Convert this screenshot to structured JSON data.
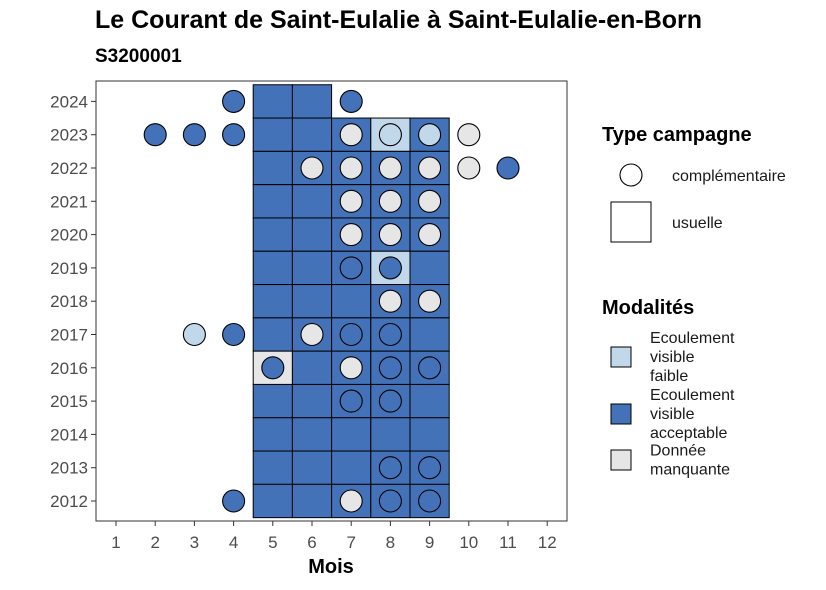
{
  "chart_data": {
    "type": "heatmap",
    "title": "Le Courant de Saint-Eulalie à Saint-Eulalie-en-Born",
    "subtitle": "S3200001",
    "xlabel": "Mois",
    "ylabel": "",
    "x_ticks": [
      "1",
      "2",
      "3",
      "4",
      "5",
      "6",
      "7",
      "8",
      "9",
      "10",
      "11",
      "12"
    ],
    "y_ticks": [
      "2012",
      "2013",
      "2014",
      "2015",
      "2016",
      "2017",
      "2018",
      "2019",
      "2020",
      "2021",
      "2022",
      "2023",
      "2024"
    ],
    "xlim": [
      0.5,
      12.5
    ],
    "ylim": [
      2011.4,
      2024.6
    ],
    "grid": false,
    "colors": {
      "faible": "#c0d8ea",
      "acceptable": "#4472b8",
      "manquante": "#e6e6e6"
    },
    "legend_shapes": {
      "title": "Type campagne",
      "items": [
        {
          "shape": "circle",
          "label": "complémentaire"
        },
        {
          "shape": "square",
          "label": "usuelle"
        }
      ]
    },
    "legend_modalites": {
      "title": "Modalités",
      "items": [
        {
          "key": "faible",
          "label_lines": [
            "Ecoulement",
            "visible",
            "faible"
          ]
        },
        {
          "key": "acceptable",
          "label_lines": [
            "Ecoulement",
            "visible",
            "acceptable"
          ]
        },
        {
          "key": "manquante",
          "label_lines": [
            "Donnée",
            "manquante"
          ]
        }
      ]
    },
    "usuelle": [
      {
        "year": 2024,
        "month": 5,
        "modalite": "acceptable"
      },
      {
        "year": 2024,
        "month": 6,
        "modalite": "acceptable"
      },
      {
        "year": 2023,
        "month": 5,
        "modalite": "acceptable"
      },
      {
        "year": 2023,
        "month": 6,
        "modalite": "acceptable"
      },
      {
        "year": 2023,
        "month": 7,
        "modalite": "acceptable"
      },
      {
        "year": 2023,
        "month": 8,
        "modalite": "faible"
      },
      {
        "year": 2023,
        "month": 9,
        "modalite": "acceptable"
      },
      {
        "year": 2022,
        "month": 5,
        "modalite": "acceptable"
      },
      {
        "year": 2022,
        "month": 6,
        "modalite": "acceptable"
      },
      {
        "year": 2022,
        "month": 7,
        "modalite": "acceptable"
      },
      {
        "year": 2022,
        "month": 8,
        "modalite": "acceptable"
      },
      {
        "year": 2022,
        "month": 9,
        "modalite": "acceptable"
      },
      {
        "year": 2021,
        "month": 5,
        "modalite": "acceptable"
      },
      {
        "year": 2021,
        "month": 6,
        "modalite": "acceptable"
      },
      {
        "year": 2021,
        "month": 7,
        "modalite": "acceptable"
      },
      {
        "year": 2021,
        "month": 8,
        "modalite": "acceptable"
      },
      {
        "year": 2021,
        "month": 9,
        "modalite": "acceptable"
      },
      {
        "year": 2020,
        "month": 5,
        "modalite": "acceptable"
      },
      {
        "year": 2020,
        "month": 6,
        "modalite": "acceptable"
      },
      {
        "year": 2020,
        "month": 7,
        "modalite": "acceptable"
      },
      {
        "year": 2020,
        "month": 8,
        "modalite": "acceptable"
      },
      {
        "year": 2020,
        "month": 9,
        "modalite": "acceptable"
      },
      {
        "year": 2019,
        "month": 5,
        "modalite": "acceptable"
      },
      {
        "year": 2019,
        "month": 6,
        "modalite": "acceptable"
      },
      {
        "year": 2019,
        "month": 7,
        "modalite": "acceptable"
      },
      {
        "year": 2019,
        "month": 8,
        "modalite": "faible"
      },
      {
        "year": 2019,
        "month": 9,
        "modalite": "acceptable"
      },
      {
        "year": 2018,
        "month": 5,
        "modalite": "acceptable"
      },
      {
        "year": 2018,
        "month": 6,
        "modalite": "acceptable"
      },
      {
        "year": 2018,
        "month": 7,
        "modalite": "acceptable"
      },
      {
        "year": 2018,
        "month": 8,
        "modalite": "acceptable"
      },
      {
        "year": 2018,
        "month": 9,
        "modalite": "acceptable"
      },
      {
        "year": 2017,
        "month": 5,
        "modalite": "acceptable"
      },
      {
        "year": 2017,
        "month": 6,
        "modalite": "acceptable"
      },
      {
        "year": 2017,
        "month": 7,
        "modalite": "acceptable"
      },
      {
        "year": 2017,
        "month": 8,
        "modalite": "acceptable"
      },
      {
        "year": 2017,
        "month": 9,
        "modalite": "acceptable"
      },
      {
        "year": 2016,
        "month": 5,
        "modalite": "manquante"
      },
      {
        "year": 2016,
        "month": 6,
        "modalite": "acceptable"
      },
      {
        "year": 2016,
        "month": 7,
        "modalite": "acceptable"
      },
      {
        "year": 2016,
        "month": 8,
        "modalite": "acceptable"
      },
      {
        "year": 2016,
        "month": 9,
        "modalite": "acceptable"
      },
      {
        "year": 2015,
        "month": 5,
        "modalite": "acceptable"
      },
      {
        "year": 2015,
        "month": 6,
        "modalite": "acceptable"
      },
      {
        "year": 2015,
        "month": 7,
        "modalite": "acceptable"
      },
      {
        "year": 2015,
        "month": 8,
        "modalite": "acceptable"
      },
      {
        "year": 2015,
        "month": 9,
        "modalite": "acceptable"
      },
      {
        "year": 2014,
        "month": 5,
        "modalite": "acceptable"
      },
      {
        "year": 2014,
        "month": 6,
        "modalite": "acceptable"
      },
      {
        "year": 2014,
        "month": 7,
        "modalite": "acceptable"
      },
      {
        "year": 2014,
        "month": 8,
        "modalite": "acceptable"
      },
      {
        "year": 2014,
        "month": 9,
        "modalite": "acceptable"
      },
      {
        "year": 2013,
        "month": 5,
        "modalite": "acceptable"
      },
      {
        "year": 2013,
        "month": 6,
        "modalite": "acceptable"
      },
      {
        "year": 2013,
        "month": 7,
        "modalite": "acceptable"
      },
      {
        "year": 2013,
        "month": 8,
        "modalite": "acceptable"
      },
      {
        "year": 2013,
        "month": 9,
        "modalite": "acceptable"
      },
      {
        "year": 2012,
        "month": 5,
        "modalite": "acceptable"
      },
      {
        "year": 2012,
        "month": 6,
        "modalite": "acceptable"
      },
      {
        "year": 2012,
        "month": 7,
        "modalite": "acceptable"
      },
      {
        "year": 2012,
        "month": 8,
        "modalite": "acceptable"
      },
      {
        "year": 2012,
        "month": 9,
        "modalite": "acceptable"
      }
    ],
    "complementaire": [
      {
        "year": 2024,
        "month": 4,
        "modalite": "acceptable"
      },
      {
        "year": 2024,
        "month": 7,
        "modalite": "acceptable"
      },
      {
        "year": 2023,
        "month": 2,
        "modalite": "acceptable"
      },
      {
        "year": 2023,
        "month": 3,
        "modalite": "acceptable"
      },
      {
        "year": 2023,
        "month": 4,
        "modalite": "acceptable"
      },
      {
        "year": 2023,
        "month": 7,
        "modalite": "manquante"
      },
      {
        "year": 2023,
        "month": 8,
        "modalite": "faible"
      },
      {
        "year": 2023,
        "month": 9,
        "modalite": "faible"
      },
      {
        "year": 2023,
        "month": 10,
        "modalite": "manquante"
      },
      {
        "year": 2022,
        "month": 6,
        "modalite": "manquante"
      },
      {
        "year": 2022,
        "month": 7,
        "modalite": "manquante"
      },
      {
        "year": 2022,
        "month": 8,
        "modalite": "manquante"
      },
      {
        "year": 2022,
        "month": 9,
        "modalite": "manquante"
      },
      {
        "year": 2022,
        "month": 10,
        "modalite": "manquante"
      },
      {
        "year": 2022,
        "month": 11,
        "modalite": "acceptable"
      },
      {
        "year": 2021,
        "month": 7,
        "modalite": "manquante"
      },
      {
        "year": 2021,
        "month": 8,
        "modalite": "manquante"
      },
      {
        "year": 2021,
        "month": 9,
        "modalite": "manquante"
      },
      {
        "year": 2020,
        "month": 7,
        "modalite": "manquante"
      },
      {
        "year": 2020,
        "month": 8,
        "modalite": "manquante"
      },
      {
        "year": 2020,
        "month": 9,
        "modalite": "manquante"
      },
      {
        "year": 2019,
        "month": 7,
        "modalite": "acceptable"
      },
      {
        "year": 2019,
        "month": 8,
        "modalite": "acceptable"
      },
      {
        "year": 2018,
        "month": 8,
        "modalite": "manquante"
      },
      {
        "year": 2018,
        "month": 9,
        "modalite": "manquante"
      },
      {
        "year": 2017,
        "month": 3,
        "modalite": "faible"
      },
      {
        "year": 2017,
        "month": 4,
        "modalite": "acceptable"
      },
      {
        "year": 2017,
        "month": 6,
        "modalite": "manquante"
      },
      {
        "year": 2017,
        "month": 7,
        "modalite": "acceptable"
      },
      {
        "year": 2017,
        "month": 8,
        "modalite": "acceptable"
      },
      {
        "year": 2016,
        "month": 5,
        "modalite": "acceptable"
      },
      {
        "year": 2016,
        "month": 7,
        "modalite": "manquante"
      },
      {
        "year": 2016,
        "month": 8,
        "modalite": "acceptable"
      },
      {
        "year": 2016,
        "month": 9,
        "modalite": "acceptable"
      },
      {
        "year": 2015,
        "month": 7,
        "modalite": "acceptable"
      },
      {
        "year": 2015,
        "month": 8,
        "modalite": "acceptable"
      },
      {
        "year": 2013,
        "month": 8,
        "modalite": "acceptable"
      },
      {
        "year": 2013,
        "month": 9,
        "modalite": "acceptable"
      },
      {
        "year": 2012,
        "month": 4,
        "modalite": "acceptable"
      },
      {
        "year": 2012,
        "month": 7,
        "modalite": "manquante"
      },
      {
        "year": 2012,
        "month": 8,
        "modalite": "acceptable"
      },
      {
        "year": 2012,
        "month": 9,
        "modalite": "acceptable"
      }
    ]
  }
}
